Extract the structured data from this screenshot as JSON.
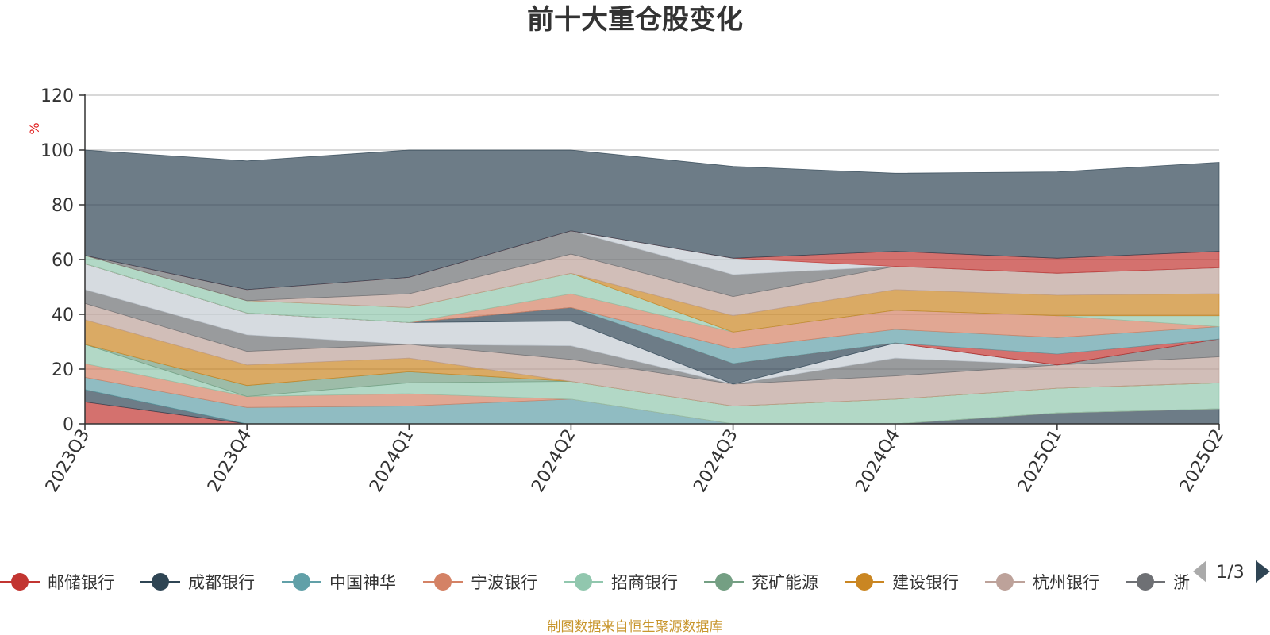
{
  "chart_data": {
    "type": "area",
    "stacked": true,
    "title": "前十大重仓股变化",
    "ylabel": "%",
    "ylim": [
      0,
      120
    ],
    "yticks": [
      0,
      20,
      40,
      60,
      80,
      100,
      120
    ],
    "grid": true,
    "legend_position": "bottom",
    "categories": [
      "2023Q3",
      "2023Q4",
      "2024Q1",
      "2024Q2",
      "2024Q3",
      "2024Q4",
      "2025Q1",
      "2025Q2"
    ],
    "series": [
      {
        "name": "邮储银行",
        "color": "#c23531",
        "values": [
          8,
          0,
          0,
          0,
          0,
          0,
          0,
          0
        ]
      },
      {
        "name": "成都银行",
        "color": "#2f4554",
        "values": [
          4.5,
          0,
          0,
          0,
          0,
          0,
          4,
          5.5
        ]
      },
      {
        "name": "中国神华",
        "color": "#61a0a8",
        "values": [
          4.5,
          6,
          6.5,
          9,
          0,
          0,
          0,
          0
        ]
      },
      {
        "name": "宁波银行",
        "color": "#d48265",
        "values": [
          5,
          4,
          4.5,
          0,
          0,
          0,
          0,
          0
        ]
      },
      {
        "name": "招商银行",
        "color": "#91c7ae",
        "values": [
          7,
          0,
          4,
          6.5,
          6.5,
          9,
          9,
          9.5
        ]
      },
      {
        "name": "兖矿能源",
        "color": "#749f83",
        "values": [
          0,
          4,
          4,
          0,
          0,
          0,
          0,
          0
        ]
      },
      {
        "name": "建设银行",
        "color": "#ca8622",
        "values": [
          9,
          7.5,
          5,
          0,
          0,
          0,
          0,
          0
        ]
      },
      {
        "name": "杭州银行",
        "color": "#bda29a",
        "values": [
          6,
          5,
          5,
          8,
          8,
          8.5,
          8.5,
          9.5
        ]
      },
      {
        "name": "",
        "color": "#6e7074",
        "values": [
          5,
          6,
          0,
          5,
          0,
          6.5,
          0,
          6.5
        ]
      },
      {
        "name": "",
        "color": "#c4ccd3",
        "values": [
          9.5,
          8,
          8,
          9,
          0,
          5.5,
          0,
          0
        ]
      },
      {
        "name": "",
        "color": "#2f4554",
        "values": [
          0,
          0,
          0,
          5,
          7.5,
          0,
          0,
          0
        ]
      },
      {
        "name": "",
        "color": "#c23531",
        "values": [
          0,
          0,
          0,
          0,
          0,
          0,
          4,
          0
        ]
      },
      {
        "name": "",
        "color": "#61a0a8",
        "values": [
          0,
          0,
          0,
          0,
          5.5,
          5,
          6,
          4.5
        ]
      },
      {
        "name": "",
        "color": "#d48265",
        "values": [
          0,
          0,
          0,
          5,
          6,
          7,
          8,
          0
        ]
      },
      {
        "name": "",
        "color": "#91c7ae",
        "values": [
          3,
          4.5,
          5.5,
          7.5,
          0,
          0,
          0,
          4
        ]
      },
      {
        "name": "",
        "color": "#ca8622",
        "values": [
          0,
          0,
          0,
          0,
          6,
          7.5,
          7.5,
          8
        ]
      },
      {
        "name": "",
        "color": "#bda29a",
        "values": [
          0,
          0,
          5,
          7,
          7,
          8.5,
          8,
          9.5
        ]
      },
      {
        "name": "",
        "color": "#6e7074",
        "values": [
          0,
          4,
          6,
          8.5,
          8,
          0,
          0,
          0
        ]
      },
      {
        "name": "",
        "color": "#c4ccd3",
        "values": [
          0,
          0,
          0,
          0,
          6,
          0,
          0,
          0
        ]
      },
      {
        "name": "",
        "color": "#c23531",
        "values": [
          0,
          0,
          0,
          0,
          0,
          5.5,
          5.5,
          6
        ]
      },
      {
        "name": "",
        "color": "#2f4554",
        "values": [
          38.5,
          47,
          46.5,
          29.5,
          33.5,
          28.5,
          31.5,
          32.5
        ]
      }
    ]
  },
  "legend": {
    "items": [
      {
        "label": "邮储银行",
        "color": "#c23531"
      },
      {
        "label": "成都银行",
        "color": "#2f4554"
      },
      {
        "label": "中国神华",
        "color": "#61a0a8"
      },
      {
        "label": "宁波银行",
        "color": "#d48265"
      },
      {
        "label": "招商银行",
        "color": "#91c7ae"
      },
      {
        "label": "兖矿能源",
        "color": "#749f83"
      },
      {
        "label": "建设银行",
        "color": "#ca8622"
      },
      {
        "label": "杭州银行",
        "color": "#bda29a"
      },
      {
        "label": "浙",
        "color": "#6e7074"
      }
    ],
    "page": "1/3"
  },
  "footer": "制图数据来自恒生聚源数据库"
}
